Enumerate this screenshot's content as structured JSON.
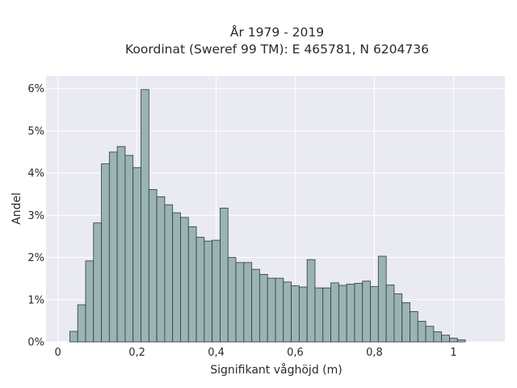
{
  "chart_data": {
    "type": "bar",
    "title": "År 1979 - 2019",
    "subtitle": "Koordinat (Sweref 99 TM): E 465781, N 6204736",
    "xlabel": "Signifikant våghöjd (m)",
    "ylabel": "Andel",
    "xlim": [
      -0.03,
      1.13
    ],
    "ylim": [
      0,
      6.3
    ],
    "x_ticks": [
      0,
      0.2,
      0.4,
      0.6,
      0.8,
      1
    ],
    "x_tick_labels": [
      "0",
      "0,2",
      "0,4",
      "0,6",
      "0,8",
      "1"
    ],
    "y_ticks": [
      0,
      1,
      2,
      3,
      4,
      5,
      6
    ],
    "y_tick_labels": [
      "0%",
      "1%",
      "2%",
      "3%",
      "4%",
      "5%",
      "6%"
    ],
    "grid": true,
    "bin_width": 0.02,
    "bin_start": 0.03,
    "values": [
      0.25,
      0.88,
      1.92,
      2.82,
      4.22,
      4.5,
      4.63,
      4.42,
      4.13,
      5.98,
      3.61,
      3.44,
      3.25,
      3.06,
      2.95,
      2.73,
      2.48,
      2.39,
      2.41,
      3.17,
      2.0,
      1.88,
      1.88,
      1.72,
      1.6,
      1.51,
      1.51,
      1.42,
      1.33,
      1.3,
      1.95,
      1.28,
      1.28,
      1.4,
      1.34,
      1.37,
      1.39,
      1.44,
      1.31,
      2.03,
      1.35,
      1.14,
      0.93,
      0.72,
      0.49,
      0.37,
      0.24,
      0.16,
      0.09,
      0.05
    ],
    "colors": {
      "bar_fill": "#9ab3b3",
      "bar_edge": "#2f3b3b",
      "plot_bg": "#eaeaf2",
      "grid": "#ffffff"
    }
  }
}
